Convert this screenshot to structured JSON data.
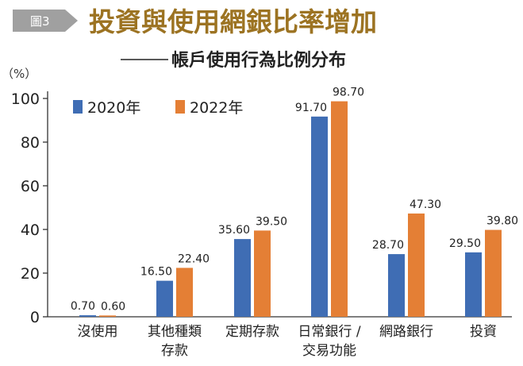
{
  "header": {
    "badge": "圖3",
    "title": "投資與使用網銀比率增加",
    "subtitle": "帳戶使用行為比例分布"
  },
  "colors": {
    "series_2020": "#3f6db4",
    "series_2022": "#e47f35",
    "title": "#9c7322",
    "badge_bg": "#a0a0a0"
  },
  "chart_data": {
    "type": "bar",
    "title": "帳戶使用行為比例分布",
    "ylabel": "（%）",
    "xlabel": "",
    "ylim": [
      0,
      100
    ],
    "yticks": [
      0,
      20,
      40,
      60,
      80,
      100
    ],
    "legend_position": "top-left",
    "categories": [
      [
        "沒使用"
      ],
      [
        "其他種類",
        "存款"
      ],
      [
        "定期存款"
      ],
      [
        "日常銀行 /",
        "交易功能"
      ],
      [
        "網路銀行"
      ],
      [
        "投資"
      ]
    ],
    "series": [
      {
        "name": "2020年",
        "values": [
          0.7,
          16.5,
          35.6,
          91.7,
          28.7,
          29.5
        ],
        "labels": [
          "0.70",
          "16.50",
          "35.60",
          "91.70",
          "28.70",
          "29.50"
        ]
      },
      {
        "name": "2022年",
        "values": [
          0.6,
          22.4,
          39.5,
          98.7,
          47.3,
          39.8
        ],
        "labels": [
          "0.60",
          "22.40",
          "39.50",
          "98.70",
          "47.30",
          "39.80"
        ]
      }
    ]
  }
}
